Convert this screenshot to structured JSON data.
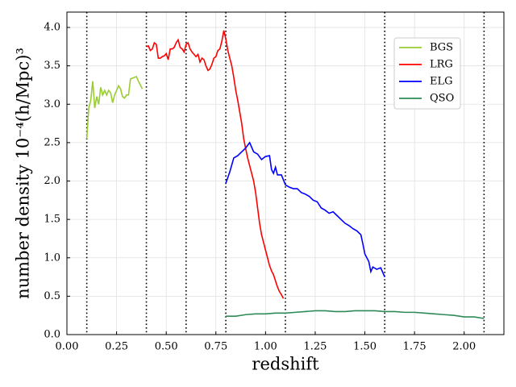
{
  "chart_data": {
    "type": "line",
    "xlabel": "redshift",
    "ylabel": "number density 10⁻⁴(h/Mpc)³",
    "xlim": [
      0,
      2.2
    ],
    "ylim": [
      0,
      4.2
    ],
    "xticks": [
      {
        "value": 0,
        "label": "0.00"
      },
      {
        "value": 0.25,
        "label": "0.25"
      },
      {
        "value": 0.5,
        "label": "0.50"
      },
      {
        "value": 0.75,
        "label": "0.75"
      },
      {
        "value": 1,
        "label": "1.00"
      },
      {
        "value": 1.25,
        "label": "1.25"
      },
      {
        "value": 1.5,
        "label": "1.50"
      },
      {
        "value": 1.75,
        "label": "1.75"
      },
      {
        "value": 2,
        "label": "2.00"
      }
    ],
    "yticks": [
      {
        "value": 0,
        "label": "0.0"
      },
      {
        "value": 0.5,
        "label": "0.5"
      },
      {
        "value": 1,
        "label": "1.0"
      },
      {
        "value": 1.5,
        "label": "1.5"
      },
      {
        "value": 2,
        "label": "2.0"
      },
      {
        "value": 2.5,
        "label": "2.5"
      },
      {
        "value": 3,
        "label": "3.0"
      },
      {
        "value": 3.5,
        "label": "3.5"
      },
      {
        "value": 4,
        "label": "4.0"
      }
    ],
    "grid": true,
    "legend": "upper right",
    "vlines": [
      0.1,
      0.4,
      0.6,
      0.8,
      1.1,
      1.6,
      2.1
    ],
    "series": [
      {
        "name": "BGS",
        "color": "#9acd32",
        "x": [
          0.1,
          0.11,
          0.12,
          0.13,
          0.14,
          0.15,
          0.16,
          0.17,
          0.18,
          0.19,
          0.2,
          0.21,
          0.22,
          0.23,
          0.24,
          0.25,
          0.26,
          0.27,
          0.28,
          0.29,
          0.3,
          0.31,
          0.32,
          0.33,
          0.34,
          0.35,
          0.36,
          0.38
        ],
        "values": [
          2.55,
          2.95,
          3.05,
          3.3,
          2.95,
          3.1,
          3.0,
          3.22,
          3.12,
          3.18,
          3.12,
          3.18,
          3.15,
          3.02,
          3.12,
          3.18,
          3.24,
          3.2,
          3.1,
          3.08,
          3.12,
          3.12,
          3.33,
          3.34,
          3.35,
          3.36,
          3.3,
          3.2
        ]
      },
      {
        "name": "LRG",
        "color": "#ff0000",
        "x": [
          0.4,
          0.41,
          0.42,
          0.43,
          0.44,
          0.45,
          0.46,
          0.47,
          0.48,
          0.49,
          0.5,
          0.51,
          0.52,
          0.53,
          0.54,
          0.55,
          0.56,
          0.57,
          0.58,
          0.59,
          0.6,
          0.61,
          0.62,
          0.63,
          0.64,
          0.65,
          0.66,
          0.67,
          0.68,
          0.69,
          0.7,
          0.71,
          0.72,
          0.73,
          0.74,
          0.75,
          0.76,
          0.77,
          0.78,
          0.79,
          0.8,
          0.81,
          0.82,
          0.83,
          0.84,
          0.85,
          0.86,
          0.87,
          0.88,
          0.89,
          0.9,
          0.91,
          0.92,
          0.93,
          0.94,
          0.95,
          0.96,
          0.97,
          0.98,
          0.99,
          1.0,
          1.01,
          1.02,
          1.03,
          1.04,
          1.05,
          1.06,
          1.07,
          1.08,
          1.09
        ],
        "values": [
          3.75,
          3.76,
          3.7,
          3.72,
          3.8,
          3.78,
          3.6,
          3.6,
          3.62,
          3.63,
          3.66,
          3.58,
          3.72,
          3.72,
          3.74,
          3.8,
          3.84,
          3.74,
          3.72,
          3.68,
          3.78,
          3.8,
          3.72,
          3.68,
          3.65,
          3.62,
          3.65,
          3.55,
          3.6,
          3.58,
          3.5,
          3.44,
          3.46,
          3.52,
          3.6,
          3.62,
          3.7,
          3.72,
          3.82,
          3.96,
          3.85,
          3.7,
          3.6,
          3.5,
          3.35,
          3.18,
          3.05,
          2.9,
          2.75,
          2.55,
          2.42,
          2.3,
          2.2,
          2.1,
          2.0,
          1.85,
          1.65,
          1.45,
          1.3,
          1.2,
          1.1,
          1.0,
          0.9,
          0.83,
          0.78,
          0.7,
          0.62,
          0.56,
          0.52,
          0.47
        ]
      },
      {
        "name": "ELG",
        "color": "#0000ff",
        "x": [
          0.8,
          0.82,
          0.84,
          0.86,
          0.88,
          0.9,
          0.92,
          0.94,
          0.96,
          0.98,
          1.0,
          1.02,
          1.03,
          1.04,
          1.05,
          1.06,
          1.08,
          1.1,
          1.12,
          1.14,
          1.16,
          1.18,
          1.2,
          1.22,
          1.24,
          1.26,
          1.28,
          1.3,
          1.32,
          1.34,
          1.36,
          1.38,
          1.4,
          1.42,
          1.44,
          1.46,
          1.48,
          1.49,
          1.5,
          1.51,
          1.52,
          1.53,
          1.54,
          1.56,
          1.58,
          1.6
        ],
        "values": [
          1.97,
          2.12,
          2.3,
          2.33,
          2.38,
          2.43,
          2.5,
          2.38,
          2.35,
          2.28,
          2.32,
          2.33,
          2.15,
          2.1,
          2.18,
          2.08,
          2.08,
          1.95,
          1.92,
          1.9,
          1.9,
          1.85,
          1.83,
          1.8,
          1.75,
          1.73,
          1.65,
          1.62,
          1.58,
          1.6,
          1.55,
          1.5,
          1.45,
          1.42,
          1.38,
          1.35,
          1.3,
          1.18,
          1.05,
          1.0,
          0.95,
          0.82,
          0.88,
          0.85,
          0.87,
          0.75
        ]
      },
      {
        "name": "QSO",
        "color": "#2e8b57",
        "x": [
          0.8,
          0.85,
          0.9,
          0.95,
          1.0,
          1.05,
          1.1,
          1.15,
          1.2,
          1.25,
          1.3,
          1.35,
          1.4,
          1.45,
          1.5,
          1.55,
          1.6,
          1.65,
          1.7,
          1.75,
          1.8,
          1.85,
          1.9,
          1.95,
          2.0,
          2.05,
          2.1
        ],
        "values": [
          0.24,
          0.24,
          0.26,
          0.27,
          0.27,
          0.28,
          0.28,
          0.29,
          0.3,
          0.31,
          0.31,
          0.3,
          0.3,
          0.31,
          0.31,
          0.31,
          0.3,
          0.3,
          0.29,
          0.29,
          0.28,
          0.27,
          0.26,
          0.25,
          0.23,
          0.23,
          0.21
        ]
      }
    ]
  }
}
